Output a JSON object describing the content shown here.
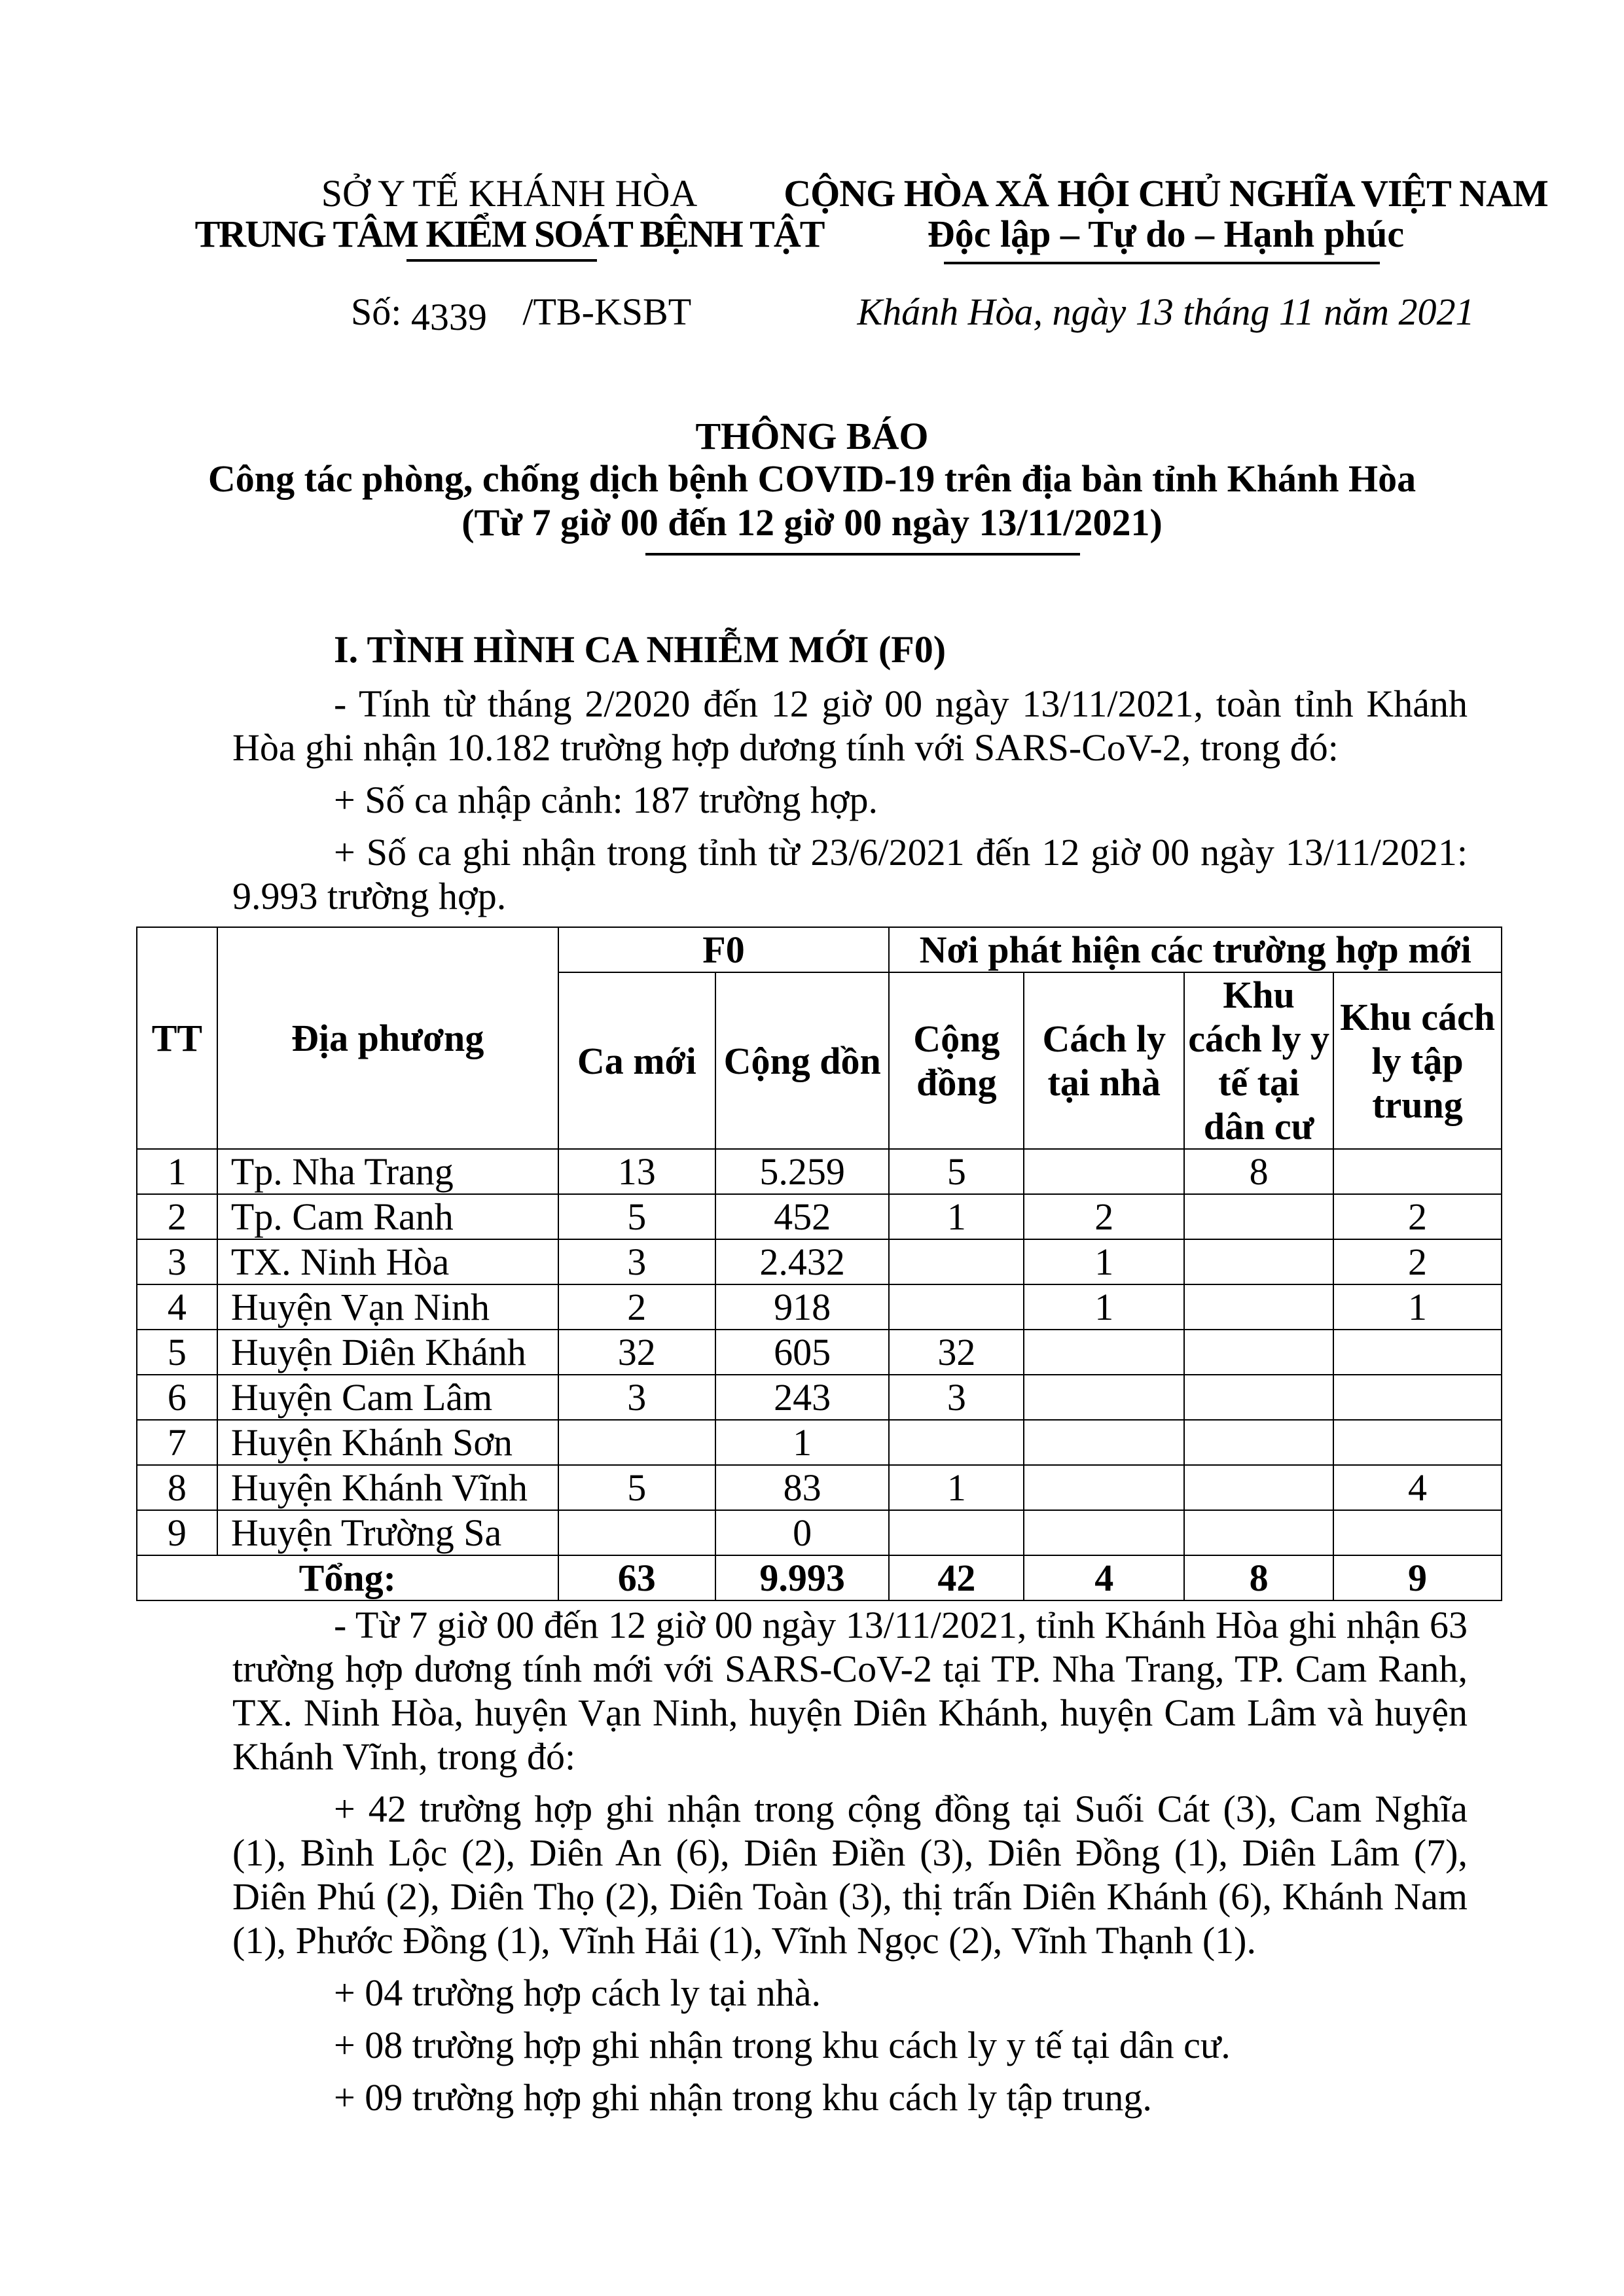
{
  "header": {
    "agency_parent": "SỞ Y TẾ KHÁNH HÒA",
    "agency": "TRUNG TÂM KIỂM SOÁT BỆNH TẬT",
    "nation": "CỘNG HÒA XÃ HỘI CHỦ NGHĨA VIỆT NAM",
    "motto": "Độc lập – Tự do – Hạnh phúc",
    "doc_number_prefix": "Số:",
    "doc_number": "4339",
    "doc_code": "/TB-KSBT",
    "place_date": "Khánh Hòa, ngày 13 tháng 11 năm 2021"
  },
  "title": {
    "main": "THÔNG BÁO",
    "subtitle": "Công tác phòng, chống dịch bệnh COVID-19 trên địa bàn tỉnh Khánh Hòa",
    "period": "(Từ 7 giờ 00 đến 12 giờ 00 ngày 13/11/2021)"
  },
  "section1": {
    "heading": "I. TÌNH HÌNH CA NHIỄM MỚI (F0)",
    "p1": "- Tính từ tháng 2/2020 đến 12 giờ 00 ngày 13/11/2021, toàn tỉnh Khánh Hòa ghi nhận 10.182 trường hợp dương tính với SARS-CoV-2, trong đó:",
    "p2": "+ Số ca nhập cảnh: 187 trường hợp.",
    "p3": "+ Số ca ghi nhận trong tỉnh từ 23/6/2021 đến 12 giờ 00 ngày 13/11/2021: 9.993 trường hợp.",
    "p4": "- Từ 7 giờ 00 đến 12 giờ 00 ngày 13/11/2021, tỉnh Khánh Hòa ghi nhận 63 trường hợp dương tính mới với SARS-CoV-2 tại TP. Nha Trang, TP. Cam Ranh, TX. Ninh Hòa, huyện Vạn Ninh, huyện Diên Khánh, huyện Cam Lâm và huyện Khánh Vĩnh, trong đó:",
    "p5": "+ 42 trường hợp ghi nhận trong cộng đồng tại Suối Cát (3), Cam Nghĩa (1), Bình Lộc (2), Diên An (6), Diên Điền (3), Diên Đồng (1), Diên Lâm (7), Diên Phú (2), Diên Thọ (2), Diên Toàn (3), thị trấn Diên Khánh (6), Khánh Nam (1), Phước Đồng (1), Vĩnh Hải (1), Vĩnh Ngọc (2), Vĩnh Thạnh (1).",
    "p6": "+ 04 trường hợp cách ly tại nhà.",
    "p7": "+ 08 trường hợp ghi nhận trong khu cách ly y tế tại dân cư.",
    "p8": "+ 09 trường hợp ghi nhận trong khu cách ly tập trung."
  },
  "table": {
    "h_tt": "TT",
    "h_locality": "Địa phương",
    "h_f0": "F0",
    "h_where": "Nơi phát hiện các trường hợp mới",
    "h_new": "Ca mới",
    "h_cumulative": "Cộng dồn",
    "h_community": "Cộng đồng",
    "h_home": "Cách ly tại nhà",
    "h_residential": "Khu cách ly y tế tại dân cư",
    "h_centralized": "Khu cách ly tập trung",
    "rows": [
      [
        "1",
        "Tp. Nha Trang",
        "13",
        "5.259",
        "5",
        "",
        "8",
        ""
      ],
      [
        "2",
        "Tp. Cam Ranh",
        "5",
        "452",
        "1",
        "2",
        "",
        "2"
      ],
      [
        "3",
        "TX. Ninh Hòa",
        "3",
        "2.432",
        "",
        "1",
        "",
        "2"
      ],
      [
        "4",
        "Huyện Vạn Ninh",
        "2",
        "918",
        "",
        "1",
        "",
        "1"
      ],
      [
        "5",
        "Huyện Diên Khánh",
        "32",
        "605",
        "32",
        "",
        "",
        ""
      ],
      [
        "6",
        "Huyện Cam Lâm",
        "3",
        "243",
        "3",
        "",
        "",
        ""
      ],
      [
        "7",
        "Huyện Khánh Sơn",
        "",
        "1",
        "",
        "",
        "",
        ""
      ],
      [
        "8",
        "Huyện Khánh Vĩnh",
        "5",
        "83",
        "1",
        "",
        "",
        "4"
      ],
      [
        "9",
        "Huyện Trường Sa",
        "",
        "0",
        "",
        "",
        "",
        ""
      ]
    ],
    "total": [
      "Tổng:",
      "63",
      "9.993",
      "42",
      "4",
      "8",
      "9"
    ]
  }
}
